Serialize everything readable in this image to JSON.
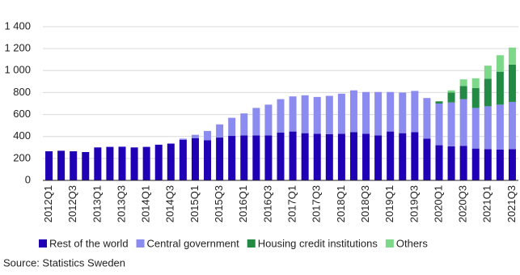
{
  "chart_data": {
    "type": "stacked-bar",
    "categories": [
      "2012Q1",
      null,
      "2012Q3",
      null,
      "2013Q1",
      null,
      "2013Q3",
      null,
      "2014Q1",
      null,
      "2014Q3",
      null,
      "2015Q1",
      null,
      "2015Q3",
      null,
      "2016Q1",
      null,
      "2016Q3",
      null,
      "2017Q1",
      null,
      "2017Q3",
      null,
      "2018Q1",
      null,
      "2018Q3",
      null,
      "2019Q1",
      null,
      "2019Q3",
      null,
      "2020Q1",
      null,
      "2020Q3",
      null,
      "2021Q1",
      null,
      "2021Q3"
    ],
    "series": [
      {
        "name": "Rest of the world",
        "color": "#1f00b4",
        "values": [
          265,
          270,
          265,
          258,
          300,
          305,
          305,
          300,
          305,
          325,
          335,
          370,
          385,
          365,
          390,
          405,
          410,
          410,
          410,
          435,
          445,
          430,
          425,
          420,
          425,
          440,
          425,
          410,
          445,
          430,
          440,
          380,
          320,
          310,
          315,
          290,
          285,
          280,
          285
        ]
      },
      {
        "name": "Central government",
        "color": "#8c8cf0",
        "values": [
          0,
          0,
          0,
          0,
          0,
          0,
          5,
          0,
          0,
          0,
          0,
          10,
          30,
          85,
          120,
          165,
          200,
          250,
          280,
          305,
          320,
          345,
          335,
          350,
          365,
          380,
          380,
          395,
          360,
          370,
          375,
          370,
          380,
          400,
          425,
          370,
          390,
          410,
          430
        ]
      },
      {
        "name": "Housing credit institutions",
        "color": "#238a45",
        "values": [
          null,
          null,
          null,
          null,
          null,
          null,
          null,
          null,
          null,
          null,
          null,
          null,
          null,
          null,
          null,
          null,
          null,
          null,
          null,
          null,
          null,
          null,
          null,
          null,
          null,
          null,
          null,
          null,
          null,
          null,
          null,
          null,
          20,
          90,
          120,
          180,
          250,
          300,
          340
        ]
      },
      {
        "name": "Others",
        "color": "#7ed88a",
        "values": [
          null,
          null,
          null,
          null,
          null,
          null,
          null,
          null,
          null,
          null,
          null,
          null,
          null,
          null,
          null,
          null,
          null,
          null,
          null,
          null,
          null,
          null,
          null,
          null,
          null,
          null,
          null,
          null,
          null,
          null,
          null,
          null,
          null,
          20,
          60,
          90,
          120,
          150,
          155
        ]
      }
    ],
    "ylim": [
      0,
      1400
    ],
    "yticks": [
      0,
      200,
      400,
      600,
      800,
      {
        "value": 1000,
        "label": "1 000"
      },
      {
        "value": 1200,
        "label": "1 200"
      },
      {
        "value": 1400,
        "label": "1 400"
      }
    ],
    "grid": true,
    "legend": "bottom",
    "source": "Source: Statistics Sweden"
  }
}
